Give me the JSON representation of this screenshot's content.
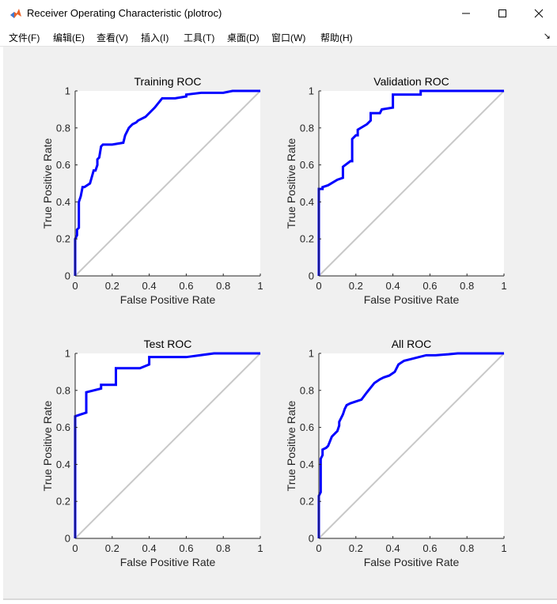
{
  "window": {
    "title": "Receiver Operating Characteristic (plotroc)"
  },
  "menu": [
    {
      "label": "文件(F)"
    },
    {
      "label": "编辑(E)"
    },
    {
      "label": "查看(V)"
    },
    {
      "label": "插入(I)"
    },
    {
      "label": "工具(T)"
    },
    {
      "label": "桌面(D)"
    },
    {
      "label": "窗口(W)"
    },
    {
      "label": "帮助(H)"
    }
  ],
  "menu_overflow": "↘",
  "colors": {
    "curve": "#0000ff",
    "diagonal": "#c8c8c8",
    "figure_bg": "#f0f0f0"
  },
  "icons": [
    "matlab-icon",
    "minimize-icon",
    "maximize-icon",
    "close-icon"
  ],
  "chart_data": [
    {
      "type": "line",
      "title": "Training ROC",
      "xlabel": "False Positive Rate",
      "ylabel": "True Positive Rate",
      "xlim": [
        0,
        1
      ],
      "ylim": [
        0,
        1
      ],
      "xticks": [
        "0",
        "0.2",
        "0.4",
        "0.6",
        "0.8",
        "1"
      ],
      "yticks": [
        "0",
        "0.2",
        "0.4",
        "0.6",
        "0.8",
        "1"
      ],
      "series": [
        {
          "x": [
            0,
            0,
            0.01,
            0.01,
            0.02,
            0.02,
            0.03,
            0.04,
            0.05,
            0.08,
            0.1,
            0.11,
            0.12,
            0.12,
            0.13,
            0.14,
            0.15,
            0.2,
            0.26,
            0.27,
            0.29,
            0.31,
            0.33,
            0.34,
            0.38,
            0.43,
            0.47,
            0.54,
            0.6,
            0.6,
            0.68,
            0.72,
            0.8,
            0.85,
            1
          ],
          "y": [
            0,
            0.2,
            0.22,
            0.25,
            0.26,
            0.4,
            0.43,
            0.48,
            0.48,
            0.5,
            0.57,
            0.57,
            0.6,
            0.63,
            0.64,
            0.7,
            0.71,
            0.71,
            0.72,
            0.76,
            0.8,
            0.82,
            0.83,
            0.84,
            0.86,
            0.91,
            0.96,
            0.96,
            0.97,
            0.98,
            0.99,
            0.99,
            0.99,
            1,
            1
          ]
        },
        {
          "x": [
            0,
            1
          ],
          "y": [
            0,
            1
          ]
        }
      ]
    },
    {
      "type": "line",
      "title": "Validation ROC",
      "xlabel": "False Positive Rate",
      "ylabel": "True Positive Rate",
      "xlim": [
        0,
        1
      ],
      "ylim": [
        0,
        1
      ],
      "xticks": [
        "0",
        "0.2",
        "0.4",
        "0.6",
        "0.8",
        "1"
      ],
      "yticks": [
        "0",
        "0.2",
        "0.4",
        "0.6",
        "0.8",
        "1"
      ],
      "series": [
        {
          "x": [
            0,
            0,
            0.02,
            0.02,
            0.05,
            0.1,
            0.13,
            0.13,
            0.17,
            0.18,
            0.18,
            0.2,
            0.21,
            0.21,
            0.26,
            0.28,
            0.28,
            0.33,
            0.34,
            0.4,
            0.4,
            0.55,
            0.55,
            0.7,
            1
          ],
          "y": [
            0,
            0.47,
            0.47,
            0.48,
            0.49,
            0.52,
            0.53,
            0.59,
            0.62,
            0.62,
            0.74,
            0.76,
            0.76,
            0.79,
            0.82,
            0.84,
            0.88,
            0.88,
            0.9,
            0.91,
            0.98,
            0.98,
            1,
            1,
            1
          ]
        },
        {
          "x": [
            0,
            1
          ],
          "y": [
            0,
            1
          ]
        }
      ]
    },
    {
      "type": "line",
      "title": "Test ROC",
      "xlabel": "False Positive Rate",
      "ylabel": "True Positive Rate",
      "xlim": [
        0,
        1
      ],
      "ylim": [
        0,
        1
      ],
      "xticks": [
        "0",
        "0.2",
        "0.4",
        "0.6",
        "0.8",
        "1"
      ],
      "yticks": [
        "0",
        "0.2",
        "0.4",
        "0.6",
        "0.8",
        "1"
      ],
      "series": [
        {
          "x": [
            0,
            0,
            0.03,
            0.06,
            0.06,
            0.14,
            0.14,
            0.22,
            0.22,
            0.35,
            0.4,
            0.4,
            0.6,
            0.75,
            1
          ],
          "y": [
            0,
            0.66,
            0.67,
            0.68,
            0.79,
            0.81,
            0.83,
            0.83,
            0.92,
            0.92,
            0.94,
            0.98,
            0.98,
            1,
            1
          ]
        },
        {
          "x": [
            0,
            1
          ],
          "y": [
            0,
            1
          ]
        }
      ]
    },
    {
      "type": "line",
      "title": "All ROC",
      "xlabel": "False Positive Rate",
      "ylabel": "True Positive Rate",
      "xlim": [
        0,
        1
      ],
      "ylim": [
        0,
        1
      ],
      "xticks": [
        "0",
        "0.2",
        "0.4",
        "0.6",
        "0.8",
        "1"
      ],
      "yticks": [
        "0",
        "0.2",
        "0.4",
        "0.6",
        "0.8",
        "1"
      ],
      "series": [
        {
          "x": [
            0,
            0,
            0.01,
            0.01,
            0.02,
            0.02,
            0.04,
            0.05,
            0.07,
            0.09,
            0.1,
            0.11,
            0.11,
            0.13,
            0.14,
            0.15,
            0.17,
            0.2,
            0.23,
            0.26,
            0.3,
            0.33,
            0.35,
            0.38,
            0.41,
            0.43,
            0.46,
            0.5,
            0.54,
            0.58,
            0.63,
            0.7,
            0.75,
            0.85,
            1
          ],
          "y": [
            0,
            0.23,
            0.25,
            0.43,
            0.45,
            0.48,
            0.49,
            0.5,
            0.55,
            0.57,
            0.58,
            0.61,
            0.63,
            0.67,
            0.7,
            0.72,
            0.73,
            0.74,
            0.75,
            0.79,
            0.84,
            0.86,
            0.87,
            0.88,
            0.9,
            0.94,
            0.96,
            0.97,
            0.98,
            0.99,
            0.99,
            0.995,
            1,
            1,
            1
          ]
        },
        {
          "x": [
            0,
            1
          ],
          "y": [
            0,
            1
          ]
        }
      ]
    }
  ]
}
